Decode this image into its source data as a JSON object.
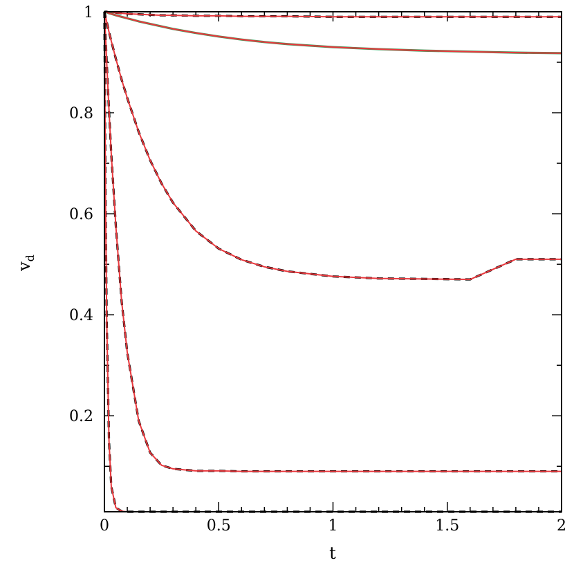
{
  "chart_data": {
    "type": "line",
    "title": "",
    "xlabel": "t",
    "ylabel": "v",
    "ylabel_subscript": "d",
    "xlim": [
      0,
      2
    ],
    "ylim": [
      0.01,
      1
    ],
    "xticks": [
      0,
      0.5,
      1,
      1.5,
      2
    ],
    "xtick_labels": [
      "0",
      "0.5",
      "1",
      "1.5",
      "2"
    ],
    "yticks": [
      0.2,
      0.4,
      0.6,
      0.8,
      1
    ],
    "ytick_labels": [
      "0.2",
      "0.4",
      "0.6",
      "0.8",
      "1"
    ],
    "x_minor_step": 0.1,
    "y_minor_step": 0.1,
    "grid": false,
    "legend": "none",
    "colors": {
      "solid_red": "#e8383d",
      "solid_green": "#3a9a5a",
      "dashed_black": "#000000"
    },
    "x": [
      0,
      0.005,
      0.01,
      0.02,
      0.03,
      0.05,
      0.075,
      0.1,
      0.15,
      0.2,
      0.25,
      0.3,
      0.4,
      0.5,
      0.6,
      0.7,
      0.8,
      1.0,
      1.2,
      1.4,
      1.6,
      1.8,
      2.0
    ],
    "series": [
      {
        "style": "red-solid-over-black-dashed",
        "values": [
          1,
          1,
          1,
          0.999,
          0.999,
          0.998,
          0.997,
          0.996,
          0.995,
          0.994,
          0.993,
          0.993,
          0.992,
          0.992,
          0.991,
          0.991,
          0.991,
          0.99,
          0.99,
          0.99,
          0.99,
          0.99,
          0.99
        ]
      },
      {
        "style": "red-solid-over-green",
        "values": [
          1,
          0.999,
          0.999,
          0.997,
          0.996,
          0.993,
          0.99,
          0.987,
          0.981,
          0.976,
          0.971,
          0.966,
          0.958,
          0.951,
          0.945,
          0.94,
          0.936,
          0.93,
          0.926,
          0.923,
          0.921,
          0.919,
          0.918
        ]
      },
      {
        "style": "red-solid-over-black-dashed",
        "values": [
          1,
          0.99,
          0.98,
          0.96,
          0.942,
          0.907,
          0.866,
          0.829,
          0.762,
          0.706,
          0.66,
          0.622,
          0.566,
          0.531,
          0.509,
          0.495,
          0.486,
          0.476,
          0.472,
          0.471,
          0.47,
          0.51,
          0.51
        ]
      },
      {
        "style": "red-solid-over-black-dashed",
        "values": [
          1,
          0.95,
          0.9,
          0.805,
          0.718,
          0.575,
          0.428,
          0.325,
          0.19,
          0.127,
          0.102,
          0.095,
          0.091,
          0.091,
          0.09,
          0.09,
          0.09,
          0.09,
          0.09,
          0.09,
          0.09,
          0.09,
          0.09
        ]
      },
      {
        "style": "red-solid-over-black-dashed",
        "values": [
          1,
          0.62,
          0.39,
          0.15,
          0.06,
          0.018,
          0.011,
          0.01,
          0.01,
          0.01,
          0.01,
          0.01,
          0.01,
          0.01,
          0.01,
          0.01,
          0.01,
          0.01,
          0.01,
          0.01,
          0.01,
          0.01,
          0.01
        ]
      }
    ]
  }
}
